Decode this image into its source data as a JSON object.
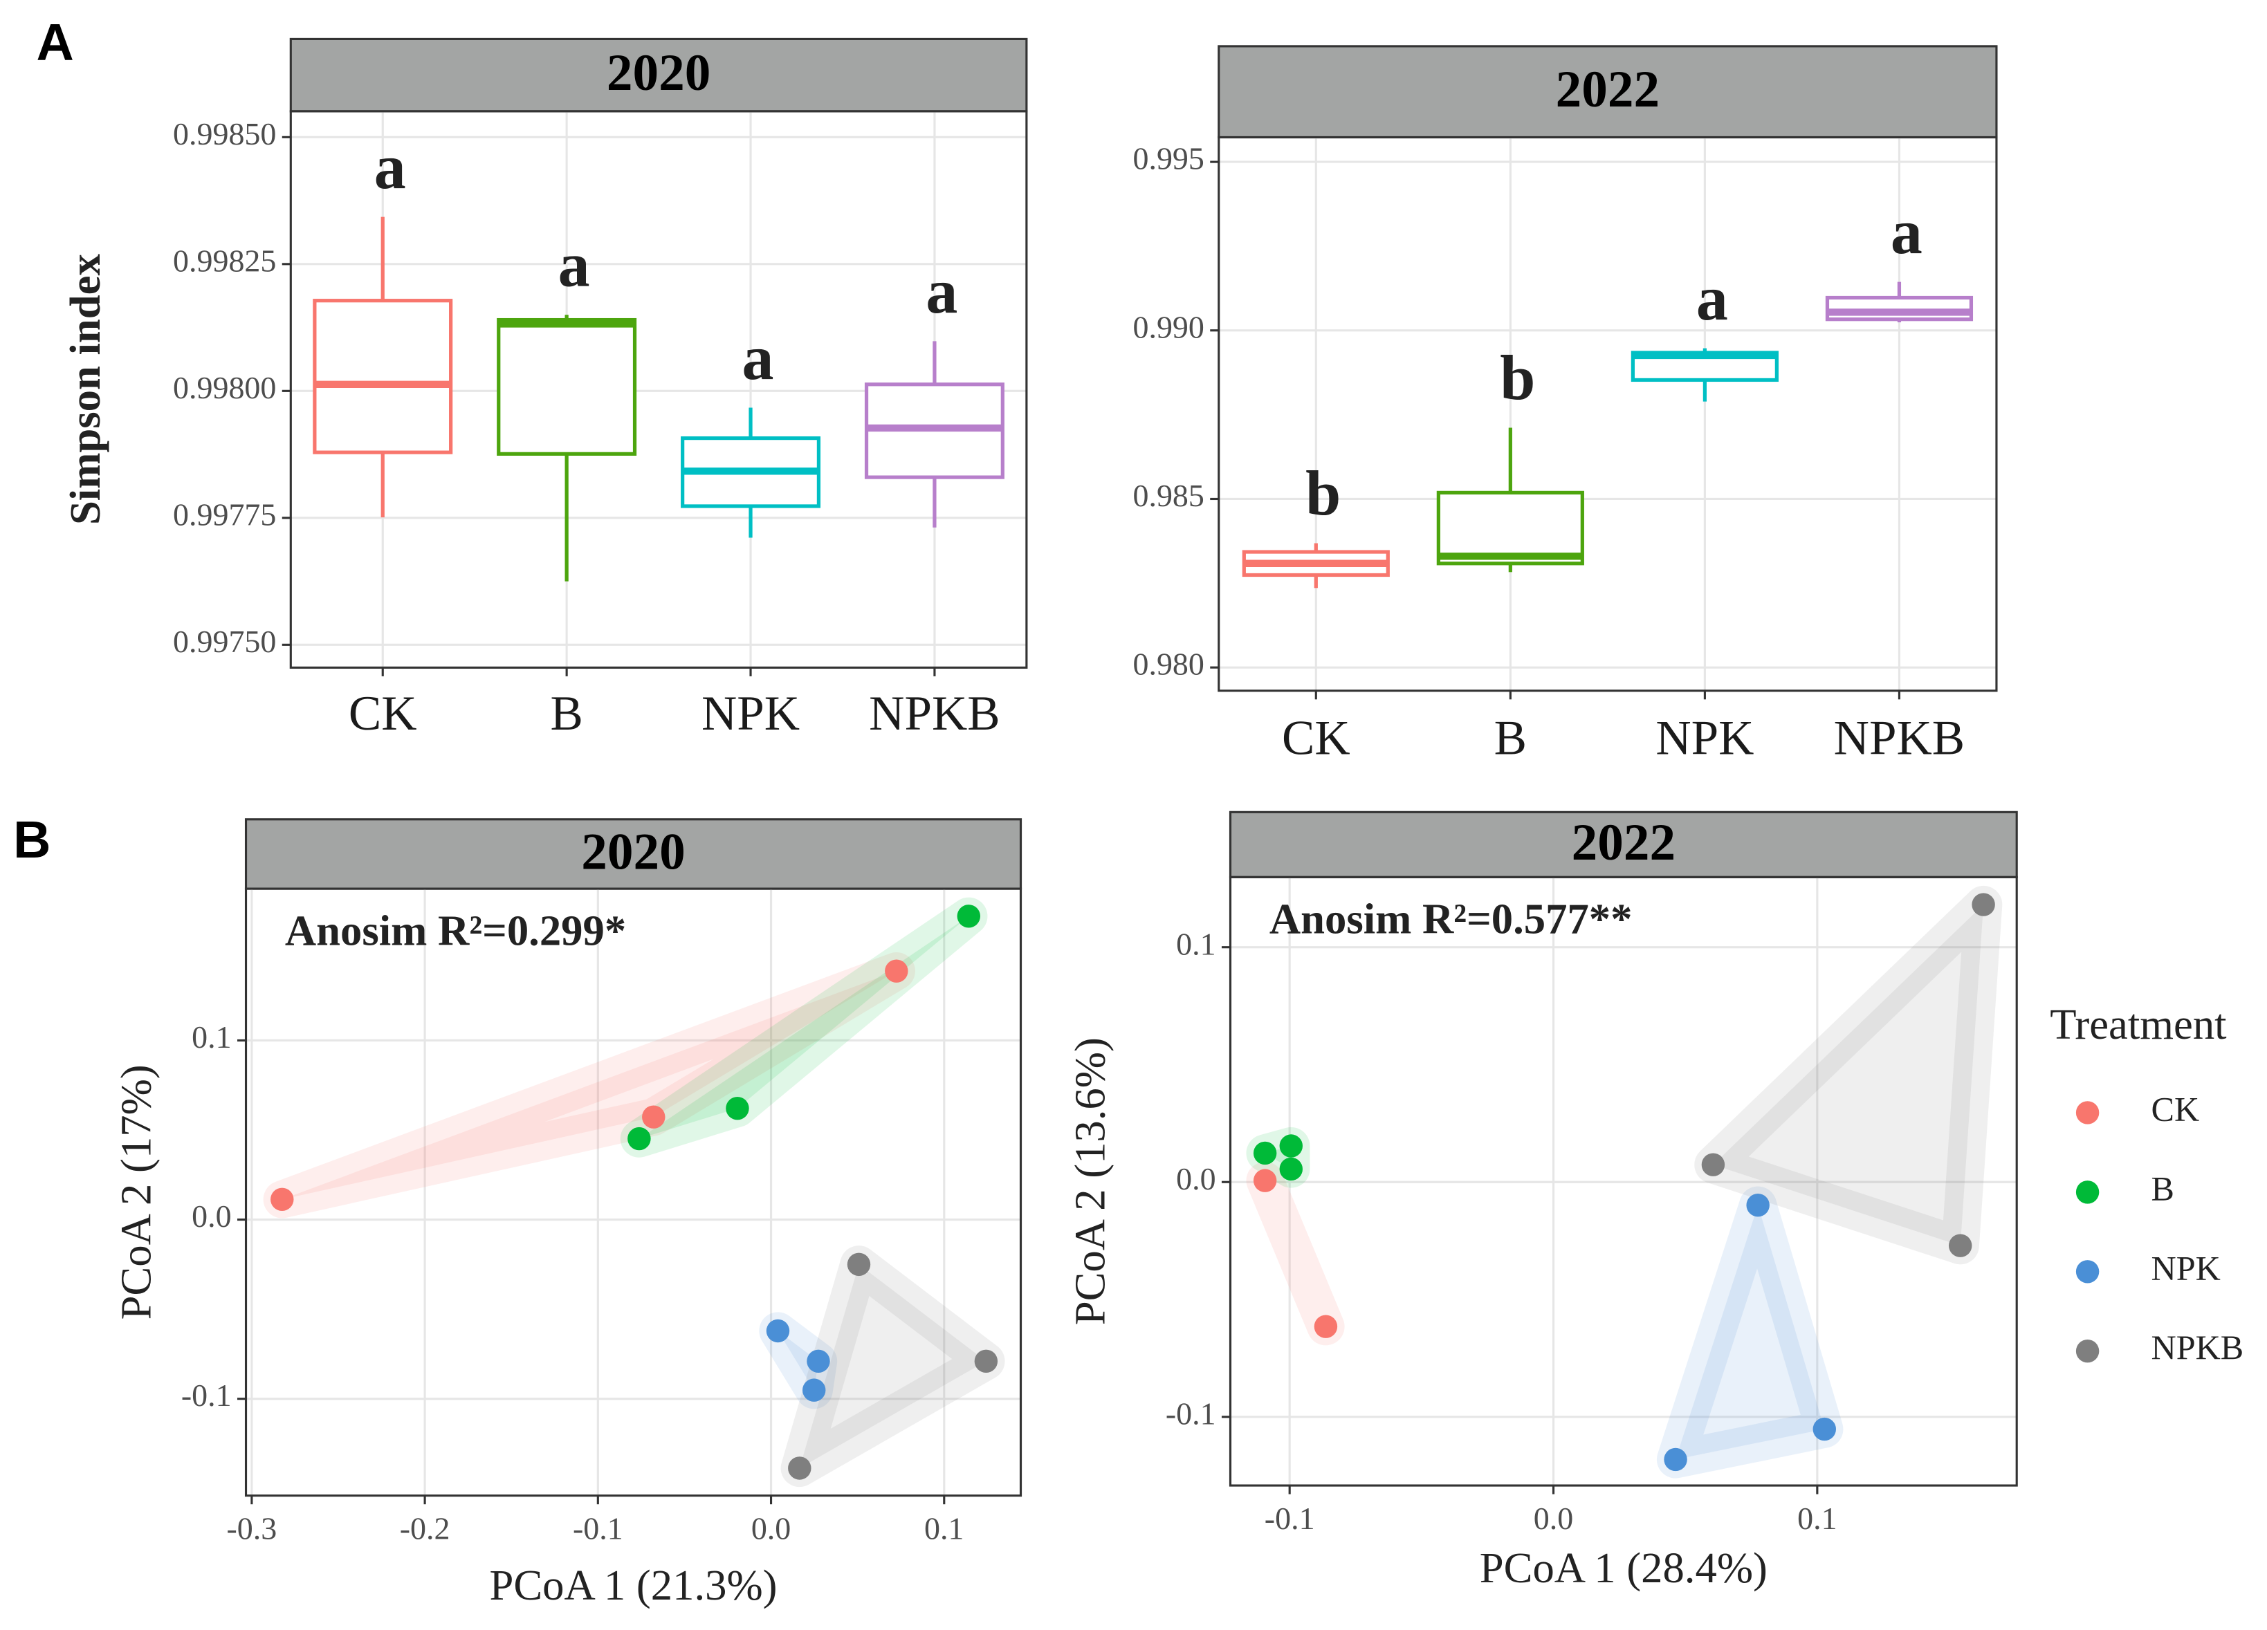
{
  "panel_labels": [
    "A",
    "B"
  ],
  "chart_data": [
    {
      "type": "box",
      "title": "2020",
      "y_label": "Simpson index",
      "categories": [
        "CK",
        "B",
        "NPK",
        "NPKB"
      ],
      "colors": [
        "#F8766D",
        "#4DA50E",
        "#00BFC4",
        "#B77FCB"
      ],
      "min": [
        0.997751,
        0.997625,
        0.997711,
        0.997731
      ],
      "q1": [
        0.997879,
        0.997876,
        0.997773,
        0.99783
      ],
      "median": [
        0.998013,
        0.998132,
        0.997842,
        0.997927
      ],
      "q3": [
        0.998178,
        0.99814,
        0.997907,
        0.998013
      ],
      "max": [
        0.998343,
        0.99815,
        0.997967,
        0.998098
      ],
      "letters": [
        "a",
        "a",
        "a",
        "a"
      ],
      "ylim": [
        0.997455,
        0.998551
      ],
      "yticks": [
        {
          "value": 0.9975,
          "label": "0.99750"
        },
        0.99775,
        {
          "value": 0.998,
          "label": "0.99800"
        },
        0.99825,
        {
          "value": 0.9985,
          "label": "0.99850"
        }
      ],
      "grid": true
    },
    {
      "type": "box",
      "title": "2022",
      "categories": [
        "CK",
        "B",
        "NPK",
        "NPKB"
      ],
      "colors": [
        "#F8766D",
        "#4DA50E",
        "#00BFC4",
        "#B77FCB"
      ],
      "min": [
        0.982357,
        0.982829,
        0.98789,
        0.99024
      ],
      "q1": [
        0.982743,
        0.983086,
        0.98853,
        0.99033
      ],
      "median": [
        0.983086,
        0.9833,
        0.98926,
        0.99054
      ],
      "q3": [
        0.983429,
        0.985186,
        0.98934,
        0.99097
      ],
      "max": [
        0.983686,
        0.987114,
        0.98947,
        0.99144
      ],
      "letters": [
        "b",
        "b",
        "a",
        "a"
      ],
      "ylim": [
        0.97931,
        0.99573
      ],
      "yticks": [
        {
          "value": 0.98,
          "label": "0.980"
        },
        0.985,
        {
          "value": 0.99,
          "label": "0.990"
        },
        0.995
      ],
      "grid": true
    },
    {
      "type": "scatter",
      "title": "2020",
      "annotation": "Anosim R²=0.299*",
      "x_label": "PCoA 1 (21.3%)",
      "y_label": "PCoA 2 (17%)",
      "series": [
        {
          "name": "CK",
          "color": "#F8766D",
          "x": [
            -0.28246,
            -0.06785,
            0.07244
          ],
          "values": [
            0.01129,
            0.05726,
            0.13871
          ]
        },
        {
          "name": "B",
          "color": "#00BA38",
          "x": [
            -0.0762,
            -0.01942,
            0.1142
          ],
          "values": [
            0.04516,
            0.0621,
            0.16935
          ]
        },
        {
          "name": "NPK",
          "color": "#4A8FD6",
          "x": [
            0.00397,
            0.02735,
            0.02484
          ],
          "values": [
            -0.0621,
            -0.07903,
            -0.09516
          ]
        },
        {
          "name": "NPKB",
          "color": "#7F7F7F",
          "x": [
            0.05073,
            0.12422,
            0.01649
          ],
          "values": [
            -0.025,
            -0.07903,
            -0.13871
          ]
        }
      ],
      "xlim": [
        -0.30334,
        0.14426
      ],
      "ylim": [
        -0.15403,
        0.18468
      ],
      "xticks": [
        -0.3,
        -0.2,
        -0.1,
        {
          "value": 0,
          "label": "0.0"
        },
        0.1
      ],
      "yticks": [
        -0.1,
        {
          "value": 0,
          "label": "0.0"
        },
        0.1
      ],
      "grid": true
    },
    {
      "type": "scatter",
      "title": "2022",
      "annotation": "Anosim R²=0.577**",
      "x_label": "PCoA 1 (28.4%)",
      "y_label": "PCoA 2 (13.6%)",
      "legend_title": "Treatment",
      "legend": "right",
      "series": [
        {
          "name": "CK",
          "color": "#F8766D",
          "x": [
            -0.10932,
            -0.0863
          ],
          "values": [
            0.00062,
            -0.06154
          ]
        },
        {
          "name": "B",
          "color": "#00BA38",
          "x": [
            -0.10932,
            -0.09945,
            -0.09945
          ],
          "values": [
            0.01231,
            0.01538,
            0.00554
          ]
        },
        {
          "name": "NPK",
          "color": "#4A8FD6",
          "x": [
            0.07753,
            0.10274,
            0.0463
          ],
          "values": [
            -0.00985,
            -0.10523,
            -0.11815
          ]
        },
        {
          "name": "NPKB",
          "color": "#7F7F7F",
          "x": [
            0.06055,
            0.15425,
            0.16301
          ],
          "values": [
            0.00738,
            -0.02708,
            0.11815
          ]
        }
      ],
      "xlim": [
        -0.12247,
        0.17562
      ],
      "ylim": [
        -0.12923,
        0.12985
      ],
      "xticks": [
        -0.1,
        {
          "value": 0,
          "label": "0.0"
        },
        0.1
      ],
      "yticks": [
        -0.1,
        {
          "value": 0,
          "label": "0.0"
        },
        0.1
      ],
      "grid": true
    }
  ]
}
